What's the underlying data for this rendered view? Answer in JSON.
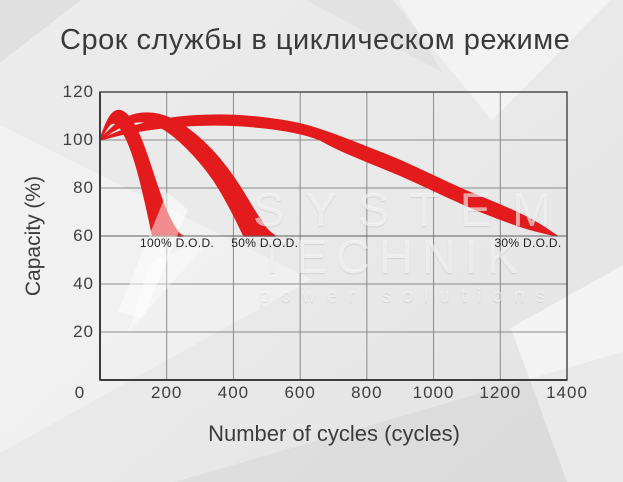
{
  "watermark": {
    "line1": "SYSTEM",
    "line2": "TECHNIK",
    "line3": "power solutions"
  },
  "colors": {
    "band": "#e31b1d",
    "grid": "#8a8a8a",
    "border": "#4d4d4d",
    "axis": "#3c3c3c",
    "tick_text": "#3e3e3e",
    "title_text": "#3a3a3a",
    "label_text": "#222222"
  },
  "chart_data": {
    "type": "area",
    "title": "Срок службы в циклическом режиме",
    "xlabel": "Number of cycles (cycles)",
    "ylabel": "Capacity (%)",
    "xlim": [
      0,
      1400
    ],
    "ylim": [
      0,
      120
    ],
    "x_ticks": [
      0,
      200,
      400,
      600,
      800,
      1000,
      1200,
      1400
    ],
    "y_ticks": [
      20,
      40,
      60,
      80,
      100,
      120
    ],
    "grid": true,
    "legend": "inline-labels",
    "series": [
      {
        "name": "100% D.O.D.",
        "label_at": {
          "x": 231,
          "y": 57
        },
        "upper": [
          [
            0,
            100
          ],
          [
            20,
            108
          ],
          [
            45,
            112.5
          ],
          [
            70,
            112
          ],
          [
            95,
            108.5
          ],
          [
            120,
            101.5
          ],
          [
            145,
            92
          ],
          [
            175,
            79
          ],
          [
            205,
            68
          ],
          [
            235,
            61
          ],
          [
            248,
            60
          ]
        ],
        "lower": [
          [
            0,
            100
          ],
          [
            18,
            104.5
          ],
          [
            35,
            107.5
          ],
          [
            55,
            106.5
          ],
          [
            75,
            102
          ],
          [
            95,
            95.5
          ],
          [
            115,
            86.5
          ],
          [
            135,
            75
          ],
          [
            150,
            65.5
          ],
          [
            158,
            60
          ]
        ]
      },
      {
        "name": "50% D.O.D.",
        "label_at": {
          "x": 494,
          "y": 57
        },
        "upper": [
          [
            0,
            100
          ],
          [
            40,
            106
          ],
          [
            85,
            110
          ],
          [
            135,
            111.5
          ],
          [
            185,
            110.5
          ],
          [
            235,
            107.5
          ],
          [
            285,
            102.5
          ],
          [
            335,
            96
          ],
          [
            380,
            88.5
          ],
          [
            420,
            80.5
          ],
          [
            460,
            71
          ],
          [
            500,
            62.5
          ],
          [
            525,
            60
          ]
        ],
        "lower": [
          [
            0,
            100
          ],
          [
            35,
            103.5
          ],
          [
            75,
            106.5
          ],
          [
            115,
            108
          ],
          [
            160,
            107
          ],
          [
            200,
            104
          ],
          [
            240,
            99.5
          ],
          [
            280,
            94
          ],
          [
            320,
            87.5
          ],
          [
            355,
            80.5
          ],
          [
            395,
            70.5
          ],
          [
            425,
            62
          ],
          [
            432,
            60
          ]
        ]
      },
      {
        "name": "30% D.O.D.",
        "label_at": {
          "x": 1283,
          "y": 57
        },
        "upper": [
          [
            0,
            100
          ],
          [
            70,
            104.5
          ],
          [
            160,
            108
          ],
          [
            260,
            110
          ],
          [
            380,
            110.5
          ],
          [
            480,
            109.5
          ],
          [
            600,
            107
          ],
          [
            700,
            102.5
          ],
          [
            800,
            97
          ],
          [
            900,
            91.5
          ],
          [
            1000,
            85
          ],
          [
            1100,
            78.5
          ],
          [
            1200,
            73
          ],
          [
            1300,
            66.5
          ],
          [
            1370,
            60
          ]
        ],
        "lower": [
          [
            0,
            100
          ],
          [
            80,
            103
          ],
          [
            200,
            105.5
          ],
          [
            320,
            106.5
          ],
          [
            440,
            106
          ],
          [
            560,
            104
          ],
          [
            650,
            101
          ],
          [
            700,
            97
          ],
          [
            800,
            91
          ],
          [
            900,
            85.5
          ],
          [
            1000,
            79
          ],
          [
            1100,
            72.5
          ],
          [
            1200,
            67
          ],
          [
            1280,
            63
          ],
          [
            1370,
            60
          ]
        ]
      }
    ]
  }
}
